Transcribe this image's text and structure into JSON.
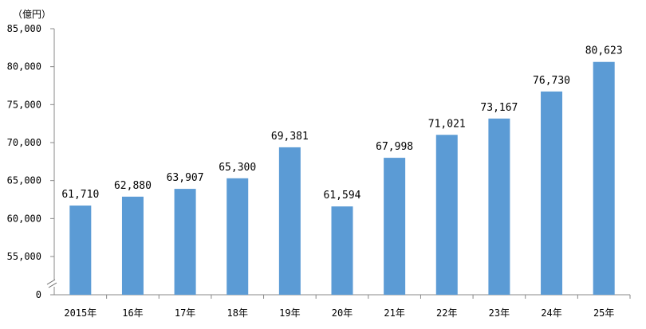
{
  "chart_data": {
    "type": "bar",
    "unit_label": "（億円）",
    "categories": [
      "2015年",
      "16年",
      "17年",
      "18年",
      "19年",
      "20年",
      "21年",
      "22年",
      "23年",
      "24年",
      "25年"
    ],
    "values": [
      61710,
      62880,
      63907,
      65300,
      69381,
      61594,
      67998,
      71021,
      73167,
      76730,
      80623
    ],
    "value_labels": [
      "61,710",
      "62,880",
      "63,907",
      "65,300",
      "69,381",
      "61,594",
      "67,998",
      "71,021",
      "73,167",
      "76,730",
      "80,623"
    ],
    "yticks": [
      0,
      55000,
      60000,
      65000,
      70000,
      75000,
      80000,
      85000
    ],
    "ytick_labels": [
      "0",
      "55,000",
      "60,000",
      "65,000",
      "70,000",
      "75,000",
      "80,000",
      "85,000"
    ],
    "axis_break": true,
    "ylim": [
      50000,
      85000
    ],
    "bar_color": "#5b9bd5",
    "axis_color": "#888888"
  }
}
